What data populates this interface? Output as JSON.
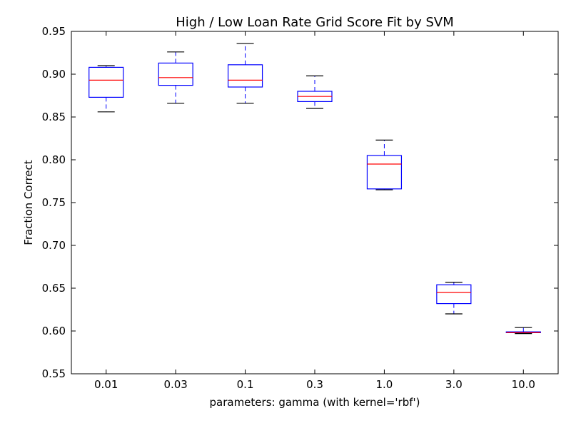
{
  "chart_data": {
    "type": "box",
    "title": "High / Low Loan Rate Grid Score Fit by SVM",
    "xlabel": "parameters: gamma (with kernel='rbf')",
    "ylabel": "Fraction Correct",
    "ylim": [
      0.55,
      0.95
    ],
    "yticks": [
      "0.55",
      "0.60",
      "0.65",
      "0.70",
      "0.75",
      "0.80",
      "0.85",
      "0.90",
      "0.95"
    ],
    "categories": [
      "0.01",
      "0.03",
      "0.1",
      "0.3",
      "1.0",
      "3.0",
      "10.0"
    ],
    "boxes": [
      {
        "min": 0.856,
        "q1": 0.873,
        "median": 0.893,
        "q3": 0.908,
        "max": 0.91
      },
      {
        "min": 0.866,
        "q1": 0.887,
        "median": 0.896,
        "q3": 0.913,
        "max": 0.926
      },
      {
        "min": 0.866,
        "q1": 0.885,
        "median": 0.893,
        "q3": 0.911,
        "max": 0.936
      },
      {
        "min": 0.86,
        "q1": 0.868,
        "median": 0.874,
        "q3": 0.88,
        "max": 0.898
      },
      {
        "min": 0.765,
        "q1": 0.766,
        "median": 0.795,
        "q3": 0.805,
        "max": 0.823
      },
      {
        "min": 0.62,
        "q1": 0.632,
        "median": 0.645,
        "q3": 0.654,
        "max": 0.657
      },
      {
        "min": 0.597,
        "q1": 0.598,
        "median": 0.598,
        "q3": 0.599,
        "max": 0.604
      }
    ],
    "colors": {
      "box": "#0000ff",
      "median": "#ff0000",
      "cap": "#000000",
      "axis": "#000000"
    },
    "grid": false,
    "legend": "none"
  }
}
